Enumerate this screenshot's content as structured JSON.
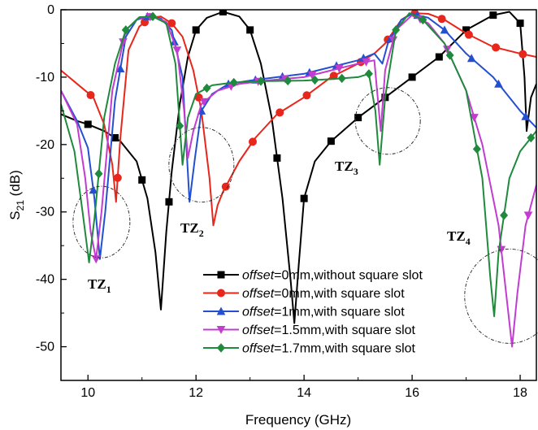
{
  "chart_data": {
    "type": "line",
    "title": "",
    "xlabel": "Frequency (GHz)",
    "ylabel": {
      "base": "S",
      "sub": "21",
      "suffix": " (dB)"
    },
    "xlim": [
      9.5,
      18.3
    ],
    "ylim": [
      -55,
      0
    ],
    "xticks": [
      10,
      12,
      14,
      16,
      18
    ],
    "yticks": [
      0,
      -10,
      -20,
      -30,
      -40,
      -50
    ],
    "grid": false,
    "legend_position": "bottom-right",
    "series": [
      {
        "name": "offset=0mm,without square slot",
        "name_italic": "offset",
        "name_rest": "=0mm,without square slot",
        "color": "#000000",
        "marker": "square",
        "points": [
          [
            9.5,
            -15.5
          ],
          [
            9.8,
            -16.5
          ],
          [
            10.0,
            -17.0
          ],
          [
            10.3,
            -18.0
          ],
          [
            10.6,
            -19.5
          ],
          [
            10.9,
            -22.5
          ],
          [
            11.1,
            -28
          ],
          [
            11.25,
            -36
          ],
          [
            11.35,
            -44.5
          ],
          [
            11.45,
            -33
          ],
          [
            11.55,
            -24
          ],
          [
            11.7,
            -14
          ],
          [
            11.85,
            -7
          ],
          [
            12.0,
            -3
          ],
          [
            12.2,
            -1.2
          ],
          [
            12.5,
            -0.3
          ],
          [
            12.8,
            -1
          ],
          [
            13.0,
            -3
          ],
          [
            13.2,
            -8
          ],
          [
            13.4,
            -16
          ],
          [
            13.6,
            -28
          ],
          [
            13.75,
            -40
          ],
          [
            13.82,
            -46.5
          ],
          [
            13.9,
            -38
          ],
          [
            14.0,
            -28
          ],
          [
            14.2,
            -22.5
          ],
          [
            14.5,
            -19.5
          ],
          [
            15.0,
            -16
          ],
          [
            15.5,
            -13
          ],
          [
            16.0,
            -10
          ],
          [
            16.5,
            -7
          ],
          [
            17.0,
            -3
          ],
          [
            17.5,
            -0.8
          ],
          [
            17.8,
            -0.3
          ],
          [
            18.0,
            -2
          ],
          [
            18.08,
            -10
          ],
          [
            18.12,
            -18
          ],
          [
            18.2,
            -13
          ],
          [
            18.3,
            -11
          ]
        ]
      },
      {
        "name": "offset=0mm,with square slot",
        "name_italic": "offset",
        "name_rest": "=0mm,with square slot",
        "color": "#e8261b",
        "marker": "circle",
        "points": [
          [
            9.5,
            -9
          ],
          [
            9.8,
            -11
          ],
          [
            10.1,
            -13
          ],
          [
            10.3,
            -17
          ],
          [
            10.45,
            -23
          ],
          [
            10.52,
            -28.5
          ],
          [
            10.6,
            -19
          ],
          [
            10.75,
            -6
          ],
          [
            10.95,
            -2.5
          ],
          [
            11.15,
            -1.2
          ],
          [
            11.35,
            -1
          ],
          [
            11.55,
            -2
          ],
          [
            11.75,
            -4
          ],
          [
            11.95,
            -9
          ],
          [
            12.1,
            -15
          ],
          [
            12.25,
            -25
          ],
          [
            12.32,
            -32
          ],
          [
            12.4,
            -29
          ],
          [
            12.5,
            -27
          ],
          [
            12.8,
            -22.5
          ],
          [
            13.1,
            -19
          ],
          [
            13.5,
            -15.5
          ],
          [
            14.0,
            -13
          ],
          [
            14.5,
            -10
          ],
          [
            15.0,
            -8
          ],
          [
            15.3,
            -6.5
          ],
          [
            15.5,
            -5
          ],
          [
            15.8,
            -1.5
          ],
          [
            16.0,
            -0.5
          ],
          [
            16.3,
            -0.6
          ],
          [
            16.6,
            -1.5
          ],
          [
            17.0,
            -3.5
          ],
          [
            17.5,
            -5.5
          ],
          [
            18.0,
            -6.5
          ],
          [
            18.3,
            -7
          ]
        ]
      },
      {
        "name": "offset=1mm,with square slot",
        "name_italic": "offset",
        "name_rest": "=1mm,with square slot",
        "color": "#2450d0",
        "marker": "triangle-up",
        "points": [
          [
            9.5,
            -12
          ],
          [
            9.8,
            -16.5
          ],
          [
            10.0,
            -20.5
          ],
          [
            10.12,
            -28
          ],
          [
            10.22,
            -37
          ],
          [
            10.32,
            -30
          ],
          [
            10.5,
            -13.5
          ],
          [
            10.7,
            -4
          ],
          [
            10.9,
            -1.5
          ],
          [
            11.1,
            -1
          ],
          [
            11.35,
            -1.3
          ],
          [
            11.55,
            -3
          ],
          [
            11.75,
            -10
          ],
          [
            11.88,
            -28.5
          ],
          [
            11.98,
            -22
          ],
          [
            12.1,
            -15
          ],
          [
            12.3,
            -12.5
          ],
          [
            12.6,
            -11
          ],
          [
            13.0,
            -10.5
          ],
          [
            13.5,
            -10
          ],
          [
            14.0,
            -9.5
          ],
          [
            14.5,
            -8.5
          ],
          [
            15.0,
            -7.5
          ],
          [
            15.3,
            -6.5
          ],
          [
            15.45,
            -8
          ],
          [
            15.55,
            -5
          ],
          [
            15.8,
            -1.5
          ],
          [
            16.0,
            -0.6
          ],
          [
            16.3,
            -1.2
          ],
          [
            16.6,
            -3
          ],
          [
            17.0,
            -6.5
          ],
          [
            17.5,
            -10
          ],
          [
            18.0,
            -15
          ],
          [
            18.3,
            -17.5
          ]
        ]
      },
      {
        "name": "offset=1.5mm,with square slot",
        "name_italic": "offset",
        "name_rest": "=1.5mm,with square slot",
        "color": "#c23cd0",
        "marker": "triangle-down",
        "points": [
          [
            9.5,
            -12
          ],
          [
            9.8,
            -17
          ],
          [
            9.95,
            -25
          ],
          [
            10.05,
            -33
          ],
          [
            10.15,
            -37
          ],
          [
            10.25,
            -30
          ],
          [
            10.45,
            -12
          ],
          [
            10.7,
            -3
          ],
          [
            10.95,
            -1.2
          ],
          [
            11.2,
            -1
          ],
          [
            11.45,
            -1.8
          ],
          [
            11.65,
            -6
          ],
          [
            11.78,
            -15
          ],
          [
            11.85,
            -22
          ],
          [
            11.95,
            -18
          ],
          [
            12.1,
            -14
          ],
          [
            12.4,
            -12
          ],
          [
            12.8,
            -11
          ],
          [
            13.3,
            -10.5
          ],
          [
            14.0,
            -10
          ],
          [
            14.5,
            -9
          ],
          [
            15.0,
            -8
          ],
          [
            15.3,
            -7.5
          ],
          [
            15.42,
            -18
          ],
          [
            15.5,
            -9
          ],
          [
            15.7,
            -3
          ],
          [
            16.0,
            -0.8
          ],
          [
            16.3,
            -2
          ],
          [
            16.6,
            -5
          ],
          [
            17.0,
            -12
          ],
          [
            17.3,
            -20
          ],
          [
            17.6,
            -32
          ],
          [
            17.85,
            -50
          ],
          [
            17.95,
            -42
          ],
          [
            18.1,
            -32
          ],
          [
            18.3,
            -26
          ]
        ]
      },
      {
        "name": "offset=1.7mm,with square slot",
        "name_italic": "offset",
        "name_rest": "=1.7mm,with square slot",
        "color": "#1f8a3c",
        "marker": "diamond",
        "points": [
          [
            9.5,
            -14
          ],
          [
            9.75,
            -21
          ],
          [
            9.9,
            -30
          ],
          [
            10.02,
            -37.5
          ],
          [
            10.12,
            -31
          ],
          [
            10.3,
            -16
          ],
          [
            10.5,
            -8
          ],
          [
            10.7,
            -3
          ],
          [
            10.95,
            -1.1
          ],
          [
            11.2,
            -1
          ],
          [
            11.45,
            -2
          ],
          [
            11.62,
            -8
          ],
          [
            11.75,
            -23
          ],
          [
            11.85,
            -16
          ],
          [
            12.0,
            -12.5
          ],
          [
            12.3,
            -11.2
          ],
          [
            12.7,
            -10.8
          ],
          [
            13.2,
            -10.6
          ],
          [
            14.0,
            -10.5
          ],
          [
            14.5,
            -10.3
          ],
          [
            15.0,
            -10
          ],
          [
            15.2,
            -9.5
          ],
          [
            15.32,
            -15
          ],
          [
            15.4,
            -23
          ],
          [
            15.5,
            -13
          ],
          [
            15.7,
            -3
          ],
          [
            15.95,
            -0.5
          ],
          [
            16.2,
            -1.5
          ],
          [
            16.6,
            -5
          ],
          [
            17.0,
            -12
          ],
          [
            17.3,
            -25
          ],
          [
            17.45,
            -40
          ],
          [
            17.52,
            -45.5
          ],
          [
            17.6,
            -36
          ],
          [
            17.8,
            -25
          ],
          [
            18.0,
            -21
          ],
          [
            18.3,
            -18
          ]
        ]
      }
    ],
    "annotations": [
      {
        "base": "TZ",
        "sub": "1"
      },
      {
        "base": "TZ",
        "sub": "2"
      },
      {
        "base": "TZ",
        "sub": "3"
      },
      {
        "base": "TZ",
        "sub": "4"
      }
    ]
  }
}
